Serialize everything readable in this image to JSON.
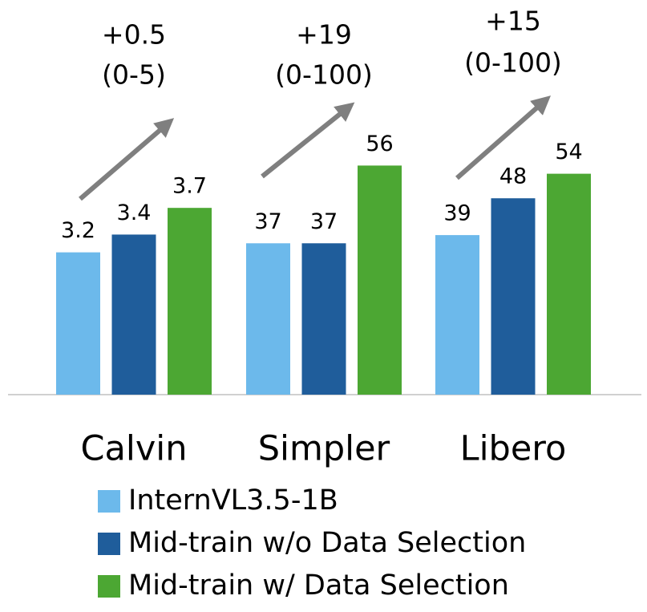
{
  "chart_data": {
    "type": "bar",
    "categories": [
      "Calvin",
      "Simpler",
      "Libero"
    ],
    "series": [
      {
        "name": "InternVL3.5-1B",
        "color": "#6cb9eb",
        "values": [
          3.2,
          37,
          39
        ]
      },
      {
        "name": "Mid-train w/o Data Selection",
        "color": "#1f5d9b",
        "values": [
          3.4,
          37,
          48
        ]
      },
      {
        "name": "Mid-train w/ Data Selection",
        "color": "#4ca733",
        "values": [
          3.7,
          56,
          54
        ]
      }
    ],
    "annotations": [
      {
        "gain": "+0.5",
        "range": "(0-5)"
      },
      {
        "gain": "+19",
        "range": "(0-100)"
      },
      {
        "gain": "+15",
        "range": "(0-100)"
      }
    ],
    "ylims": [
      [
        1.6,
        6.2
      ],
      [
        0,
        100
      ],
      [
        0,
        100
      ]
    ]
  }
}
